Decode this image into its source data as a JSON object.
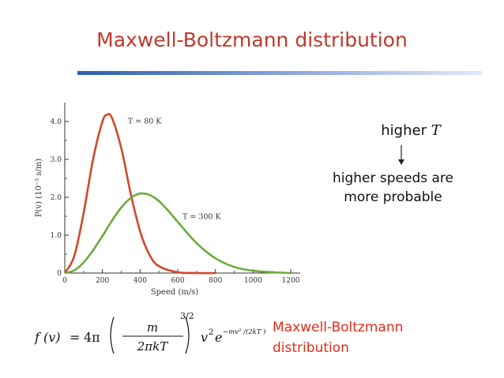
{
  "slide": {
    "title": "Maxwell-Boltzmann distribution",
    "accent_color": "#c0392b",
    "note_higher_prefix": "higher",
    "note_higher_var": "T",
    "note_probable_line1": "higher speeds are",
    "note_probable_line2": "more probable",
    "formula_caption_line1": "Maxwell-Boltzmann",
    "formula_caption_line2": "distribution",
    "formula_color": "#e32b1a"
  },
  "formula": {
    "lhs": "f (v)",
    "equals": "=",
    "coef": "4π",
    "numerator": "m",
    "denominator": "2πkT",
    "exponent": "3/2",
    "v": "v",
    "v_power": "2",
    "e": "e",
    "e_exponent": "−mv² /(2kT )"
  },
  "chart_data": {
    "type": "line",
    "xlabel": "Speed (m/s)",
    "ylabel": "P(v) (10⁻³ s/m)",
    "xlim": [
      0,
      1250
    ],
    "ylim": [
      0,
      4.5
    ],
    "x_ticks": [
      0,
      200,
      400,
      600,
      800,
      1000,
      1200
    ],
    "y_ticks": [
      "0",
      "1.0",
      "2.0",
      "3.0",
      "4.0"
    ],
    "grid": false,
    "series": [
      {
        "name": "T = 80 K",
        "color": "#d2472a",
        "x": [
          0,
          50,
          100,
          150,
          200,
          225,
          250,
          300,
          350,
          400,
          450,
          500,
          600,
          700,
          800
        ],
        "y": [
          0,
          0.44,
          1.58,
          3.0,
          4.0,
          4.18,
          4.1,
          3.3,
          2.1,
          1.1,
          0.48,
          0.18,
          0.02,
          0.0,
          0.0
        ]
      },
      {
        "name": "T = 300 K",
        "color": "#6aab3c",
        "x": [
          0,
          50,
          100,
          150,
          200,
          250,
          300,
          350,
          400,
          450,
          500,
          550,
          600,
          700,
          800,
          900,
          1000,
          1100,
          1200
        ],
        "y": [
          0,
          0.07,
          0.28,
          0.6,
          0.98,
          1.38,
          1.73,
          1.98,
          2.1,
          2.06,
          1.9,
          1.64,
          1.35,
          0.79,
          0.39,
          0.16,
          0.06,
          0.02,
          0.0
        ]
      }
    ],
    "annotations": [
      {
        "text": "T = 80 K",
        "x": 335,
        "y": 3.95
      },
      {
        "text": "T = 300 K",
        "x": 625,
        "y": 1.43
      }
    ]
  }
}
